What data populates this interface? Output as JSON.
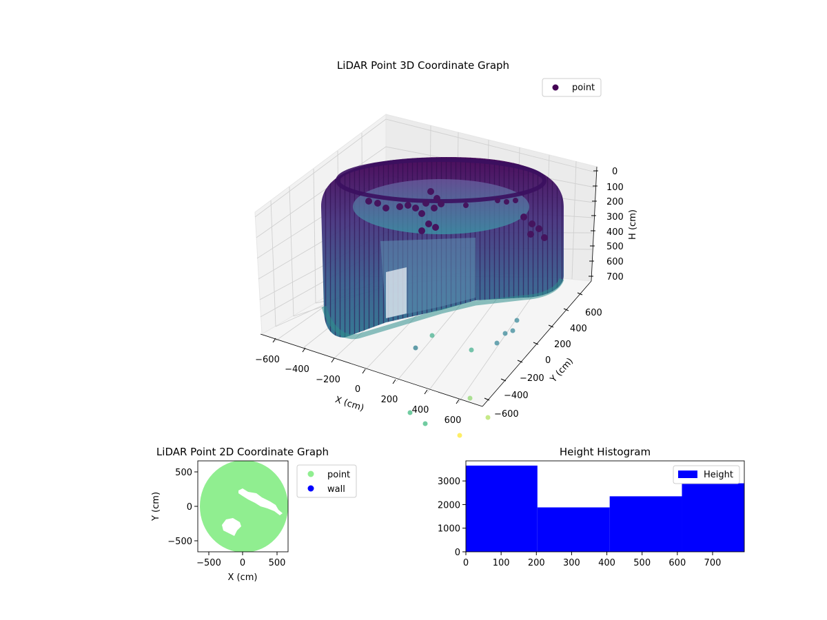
{
  "chart_data": [
    {
      "type": "scatter",
      "projection": "3d",
      "title": "LiDAR Point 3D Coordinate Graph",
      "xlabel": "X (cm)",
      "ylabel": "Y (cm)",
      "zlabel": "H (cm)",
      "xlim": [
        -700,
        700
      ],
      "ylim": [
        -700,
        700
      ],
      "zlim": [
        800,
        0
      ],
      "z_inverted": true,
      "xticks": [
        "−600",
        "−400",
        "−200",
        "0",
        "200",
        "400",
        "600"
      ],
      "yticks": [
        "−600",
        "−400",
        "−200",
        "0",
        "200",
        "400",
        "600"
      ],
      "zticks": [
        "0",
        "100",
        "200",
        "300",
        "400",
        "500",
        "600",
        "700"
      ],
      "grid": true,
      "legend": {
        "position": "top-right",
        "entries": [
          {
            "label": "point",
            "color": "#440154"
          }
        ]
      },
      "colormap": "viridis",
      "shape": "cylindrical wall of points, radius ~630 cm, heights 0–790 cm, with an opening toward +X/−Y and scattered interior clusters",
      "outliers": [
        {
          "x": 100,
          "y": -500,
          "h": 800
        },
        {
          "x": 380,
          "y": -620,
          "h": 790
        },
        {
          "x": 560,
          "y": -680,
          "h": 780
        },
        {
          "x": 650,
          "y": -590,
          "h": 780
        },
        {
          "x": 700,
          "y": -650,
          "h": 790
        }
      ]
    },
    {
      "type": "scatter",
      "title": "LiDAR Point 2D Coordinate Graph",
      "xlabel": "X (cm)",
      "ylabel": "Y (cm)",
      "xlim": [
        -660,
        660
      ],
      "ylim": [
        -660,
        660
      ],
      "xticks": [
        "−500",
        "0",
        "500"
      ],
      "yticks": [
        "−500",
        "0",
        "500"
      ],
      "series": [
        {
          "name": "point",
          "color": "#90ee90",
          "description": "disk of radius ~630 cm centred near (150, 0)"
        },
        {
          "name": "wall",
          "color": "#0000ff"
        }
      ],
      "legend": {
        "position": "outside-right",
        "entries": [
          {
            "label": "point",
            "color": "#90ee90"
          },
          {
            "label": "wall",
            "color": "#0000ff"
          }
        ]
      }
    },
    {
      "type": "bar",
      "title": "Height Histogram",
      "xlim": [
        0,
        790
      ],
      "ylim": [
        0,
        3850
      ],
      "xticks": [
        "0",
        "100",
        "200",
        "300",
        "400",
        "500",
        "600",
        "700"
      ],
      "yticks": [
        "0",
        "1000",
        "2000",
        "3000"
      ],
      "bins": [
        {
          "x0": 0,
          "x1": 203,
          "count": 3650
        },
        {
          "x0": 203,
          "x1": 408,
          "count": 1880
        },
        {
          "x0": 408,
          "x1": 613,
          "count": 2350
        },
        {
          "x0": 613,
          "x1": 790,
          "count": 2900
        }
      ],
      "color": "#0000ff",
      "legend": {
        "position": "top-right",
        "entries": [
          {
            "label": "Height",
            "color": "#0000ff"
          }
        ]
      }
    }
  ]
}
